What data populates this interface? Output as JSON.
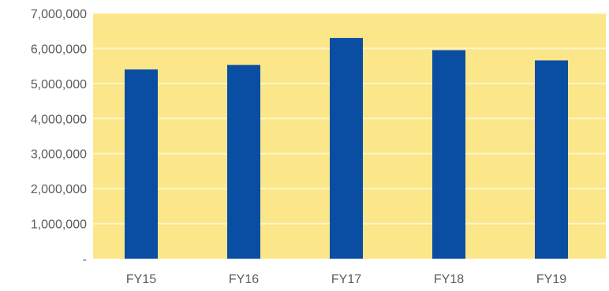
{
  "chart_data": {
    "type": "bar",
    "title": "",
    "xlabel": "",
    "ylabel": "",
    "categories": [
      "FY15",
      "FY16",
      "FY17",
      "FY18",
      "FY19"
    ],
    "values": [
      5400000,
      5530000,
      6300000,
      5950000,
      5660000
    ],
    "ylim": [
      0,
      7000000
    ],
    "y_ticks": [
      0,
      1000000,
      2000000,
      3000000,
      4000000,
      5000000,
      6000000,
      7000000
    ],
    "y_tick_labels": [
      "-",
      "1,000,000",
      "2,000,000",
      "3,000,000",
      "4,000,000",
      "5,000,000",
      "6,000,000",
      "7,000,000"
    ],
    "grid": true,
    "legend": "none",
    "colors": {
      "plot_background": "#fbe68a",
      "bar": "#0a4ea3",
      "grid": "#fff6c8",
      "text": "#5b5b5b"
    }
  }
}
